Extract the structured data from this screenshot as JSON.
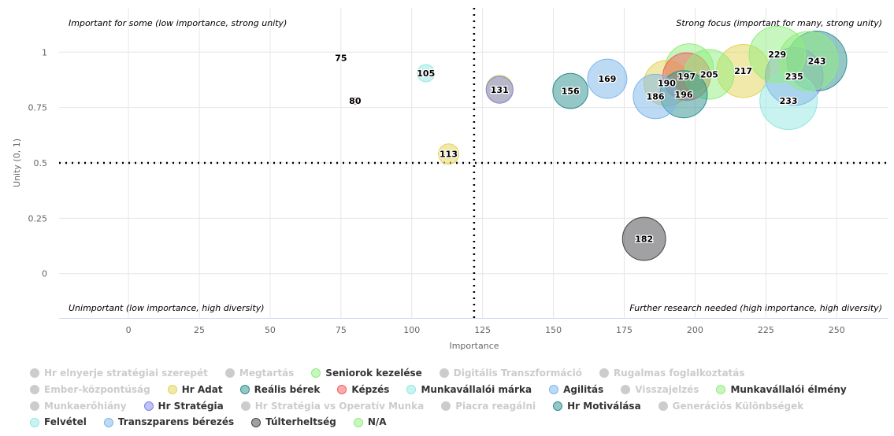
{
  "chart_data": {
    "type": "scatter",
    "subtype": "bubble",
    "xlabel": "Importance",
    "ylabel": "Unity (0, 1)",
    "xlim": [
      -24.5,
      268
    ],
    "ylim": [
      -0.2,
      1.2
    ],
    "x_ticks": [
      0,
      25,
      50,
      75,
      100,
      125,
      150,
      175,
      200,
      225,
      250
    ],
    "y_ticks": [
      0,
      0.25,
      0.5,
      0.75,
      1
    ],
    "y_tick_labels": [
      "0",
      "0.25",
      "0.5",
      "0.75",
      "1"
    ],
    "grid": true,
    "reference_lines": {
      "x": 122,
      "y": 0.5,
      "style": "dotted"
    },
    "quadrant_labels": {
      "top_left": "Important for some (low importance, strong unity)",
      "top_right": "Strong focus (important for many, strong unity)",
      "bottom_left": "Unimportant (low importance, high diversity)",
      "bottom_right": "Further research needed (high importance, high diversity)"
    },
    "legend_position": "bottom",
    "series": [
      {
        "name": "Hr elnyerje stratégiai szerepét",
        "color": "#cccccc",
        "visible": false,
        "points": []
      },
      {
        "name": "Megtartás",
        "color": "#cccccc",
        "visible": false,
        "points": []
      },
      {
        "name": "Seniorok kezelése",
        "color": "#90ed7d",
        "visible": true,
        "points": [
          {
            "x": 198,
            "y": 0.93,
            "label": ""
          }
        ]
      },
      {
        "name": "Digitális Transzformáció",
        "color": "#cccccc",
        "visible": false,
        "points": []
      },
      {
        "name": "Rugalmas foglalkoztatás",
        "color": "#cccccc",
        "visible": false,
        "points": []
      },
      {
        "name": "Ember-központúság",
        "color": "#cccccc",
        "visible": false,
        "points": []
      },
      {
        "name": "Hr Adat",
        "color": "#e4d354",
        "visible": true,
        "points": [
          {
            "x": 113,
            "y": 0.54,
            "label": "113"
          },
          {
            "x": 131,
            "y": 0.835,
            "label": ""
          },
          {
            "x": 190,
            "y": 0.86,
            "label": "190"
          },
          {
            "x": 217,
            "y": 0.915,
            "label": "217"
          }
        ]
      },
      {
        "name": "Reális bérek",
        "color": "#2b908f",
        "visible": true,
        "points": [
          {
            "x": 156,
            "y": 0.825,
            "label": "156"
          },
          {
            "x": 243,
            "y": 0.96,
            "label": "243"
          }
        ]
      },
      {
        "name": "Képzés",
        "color": "#f45b5b",
        "visible": true,
        "points": [
          {
            "x": 80,
            "y": 0.78,
            "label": "80"
          },
          {
            "x": 197,
            "y": 0.89,
            "label": "197"
          }
        ]
      },
      {
        "name": "Munkavállalói márka",
        "color": "#91e8e1",
        "visible": true,
        "points": [
          {
            "x": 105,
            "y": 0.905,
            "label": "105"
          }
        ]
      },
      {
        "name": "Agilitás",
        "color": "#7cb5ec",
        "visible": true,
        "points": [
          {
            "x": 169,
            "y": 0.88,
            "label": "169"
          }
        ]
      },
      {
        "name": "Visszajelzés",
        "color": "#cccccc",
        "visible": false,
        "points": []
      },
      {
        "name": "Munkavállalói élmény",
        "color": "#90ed7d",
        "visible": true,
        "points": [
          {
            "x": 205,
            "y": 0.9,
            "label": "205"
          }
        ]
      },
      {
        "name": "Munkaerőhiány",
        "color": "#cccccc",
        "visible": false,
        "points": []
      },
      {
        "name": "Hr Stratégia",
        "color": "#8085e9",
        "visible": true,
        "points": [
          {
            "x": 131,
            "y": 0.83,
            "label": "131"
          },
          {
            "x": 235,
            "y": 0.89,
            "label": "235"
          }
        ]
      },
      {
        "name": "Hr Stratégia vs Operatív Munka",
        "color": "#cccccc",
        "visible": false,
        "points": []
      },
      {
        "name": "Piacra reagálni",
        "color": "#cccccc",
        "visible": false,
        "points": []
      },
      {
        "name": "Hr Motiválása",
        "color": "#2b908f",
        "visible": true,
        "points": [
          {
            "x": 196,
            "y": 0.81,
            "label": "196"
          }
        ]
      },
      {
        "name": "Generációs Különbségek",
        "color": "#cccccc",
        "visible": false,
        "points": []
      },
      {
        "name": "Felvétel",
        "color": "#91e8e1",
        "visible": true,
        "points": [
          {
            "x": 75,
            "y": 0.975,
            "label": "75"
          },
          {
            "x": 233,
            "y": 0.78,
            "label": "233"
          }
        ]
      },
      {
        "name": "Transzparens bérezés",
        "color": "#7cb5ec",
        "visible": true,
        "points": [
          {
            "x": 186,
            "y": 0.8,
            "label": "186"
          }
        ]
      },
      {
        "name": "Túlterheltség",
        "color": "#434348",
        "visible": true,
        "points": [
          {
            "x": 182,
            "y": 0.157,
            "label": "182"
          }
        ]
      },
      {
        "name": "N/A",
        "color": "#90ed7d",
        "visible": true,
        "points": [
          {
            "x": 229,
            "y": 0.99,
            "label": "229"
          },
          {
            "x": 240,
            "y": 0.96,
            "label": ""
          }
        ]
      }
    ]
  }
}
